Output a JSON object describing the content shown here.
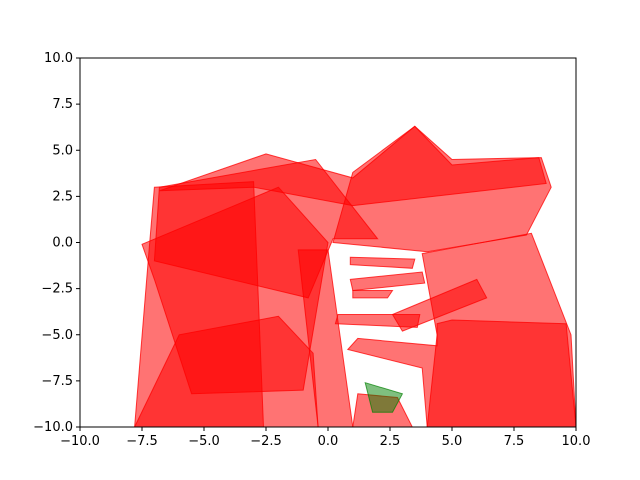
{
  "chart_data": {
    "type": "area",
    "title": "",
    "xlabel": "",
    "ylabel": "",
    "xlim": [
      -10,
      10
    ],
    "ylim": [
      -10,
      10
    ],
    "grid": false,
    "legend": "none",
    "x_ticks": [
      -10,
      -7.5,
      -5,
      -2.5,
      0,
      2.5,
      5,
      7.5,
      10
    ],
    "y_ticks": [
      -10,
      -7.5,
      -5,
      -2.5,
      0,
      2.5,
      5,
      7.5,
      10
    ],
    "x_tick_labels": [
      "−10.0",
      "−7.5",
      "−5.0",
      "−2.5",
      "0.0",
      "2.5",
      "5.0",
      "7.5",
      "10.0"
    ],
    "y_tick_labels": [
      "−10.0",
      "−7.5",
      "−5.0",
      "−2.5",
      "0.0",
      "2.5",
      "5.0",
      "7.5",
      "10.0"
    ],
    "series": [
      {
        "color": "#ff0000",
        "opacity": 0.55,
        "shapes": [
          [
            [
              -7.0,
              3.0
            ],
            [
              -3.0,
              3.3
            ],
            [
              -2.6,
              -10.0
            ],
            [
              -7.8,
              -10.0
            ],
            [
              -7.2,
              -0.2
            ]
          ],
          [
            [
              -6.8,
              2.8
            ],
            [
              -2.5,
              4.8
            ],
            [
              1.0,
              3.5
            ],
            [
              3.5,
              6.3
            ],
            [
              5.0,
              4.2
            ],
            [
              8.5,
              4.6
            ],
            [
              8.8,
              3.2
            ],
            [
              1.0,
              2.0
            ],
            [
              -3.0,
              3.0
            ]
          ],
          [
            [
              -7.5,
              -0.1
            ],
            [
              -2.0,
              3.0
            ],
            [
              0.0,
              0.0
            ],
            [
              -1.0,
              -8.0
            ],
            [
              -5.5,
              -8.2
            ],
            [
              -7.0,
              -2.0
            ]
          ],
          [
            [
              -6.8,
              3.0
            ],
            [
              -0.5,
              4.5
            ],
            [
              2.0,
              0.2
            ],
            [
              0.2,
              0.2
            ],
            [
              -0.8,
              -3.0
            ],
            [
              -7.0,
              -1.0
            ]
          ],
          [
            [
              0.2,
              0.0
            ],
            [
              4.0,
              -0.5
            ],
            [
              8.0,
              0.4
            ],
            [
              9.0,
              3.0
            ],
            [
              8.6,
              4.6
            ],
            [
              5.0,
              4.5
            ],
            [
              3.5,
              6.3
            ],
            [
              1.0,
              3.8
            ]
          ],
          [
            [
              3.8,
              -0.6
            ],
            [
              8.2,
              0.5
            ],
            [
              9.8,
              -5.0
            ],
            [
              10.0,
              -10.0
            ],
            [
              4.0,
              -10.0
            ],
            [
              4.4,
              -5.0
            ]
          ],
          [
            [
              -1.2,
              -0.4
            ],
            [
              -0.4,
              -10.0
            ],
            [
              1.0,
              -10.0
            ],
            [
              0.0,
              -0.4
            ]
          ],
          [
            [
              -7.8,
              -10.0
            ],
            [
              -6.0,
              -5.0
            ],
            [
              -2.0,
              -4.0
            ],
            [
              -0.6,
              -6.0
            ],
            [
              -0.4,
              -10.0
            ]
          ],
          [
            [
              1.0,
              -10.0
            ],
            [
              1.2,
              -8.2
            ],
            [
              2.8,
              -8.4
            ],
            [
              3.4,
              -10.0
            ]
          ],
          [
            [
              4.0,
              -10.0
            ],
            [
              3.8,
              -6.8
            ],
            [
              0.8,
              -5.8
            ],
            [
              1.2,
              -5.2
            ],
            [
              4.4,
              -5.6
            ],
            [
              4.4,
              -4.4
            ],
            [
              5.0,
              -4.2
            ],
            [
              9.6,
              -4.4
            ],
            [
              10.0,
              -10.0
            ]
          ],
          [
            [
              0.3,
              -4.4
            ],
            [
              3.6,
              -4.6
            ],
            [
              3.7,
              -3.9
            ],
            [
              0.4,
              -3.9
            ]
          ],
          [
            [
              0.9,
              -1.2
            ],
            [
              3.4,
              -1.4
            ],
            [
              3.5,
              -0.9
            ],
            [
              0.9,
              -0.8
            ]
          ],
          [
            [
              0.9,
              -2.0
            ],
            [
              3.8,
              -1.6
            ],
            [
              3.9,
              -2.2
            ],
            [
              1.0,
              -2.6
            ]
          ],
          [
            [
              1.0,
              -2.6
            ],
            [
              2.6,
              -2.6
            ],
            [
              2.4,
              -3.0
            ],
            [
              1.0,
              -3.0
            ]
          ],
          [
            [
              2.6,
              -3.9
            ],
            [
              6.0,
              -2.0
            ],
            [
              6.4,
              -3.0
            ],
            [
              3.0,
              -4.8
            ]
          ]
        ]
      },
      {
        "color": "#008000",
        "opacity": 0.5,
        "shapes": [
          [
            [
              1.5,
              -7.6
            ],
            [
              3.0,
              -8.2
            ],
            [
              2.6,
              -9.2
            ],
            [
              1.8,
              -9.2
            ]
          ]
        ]
      }
    ]
  }
}
